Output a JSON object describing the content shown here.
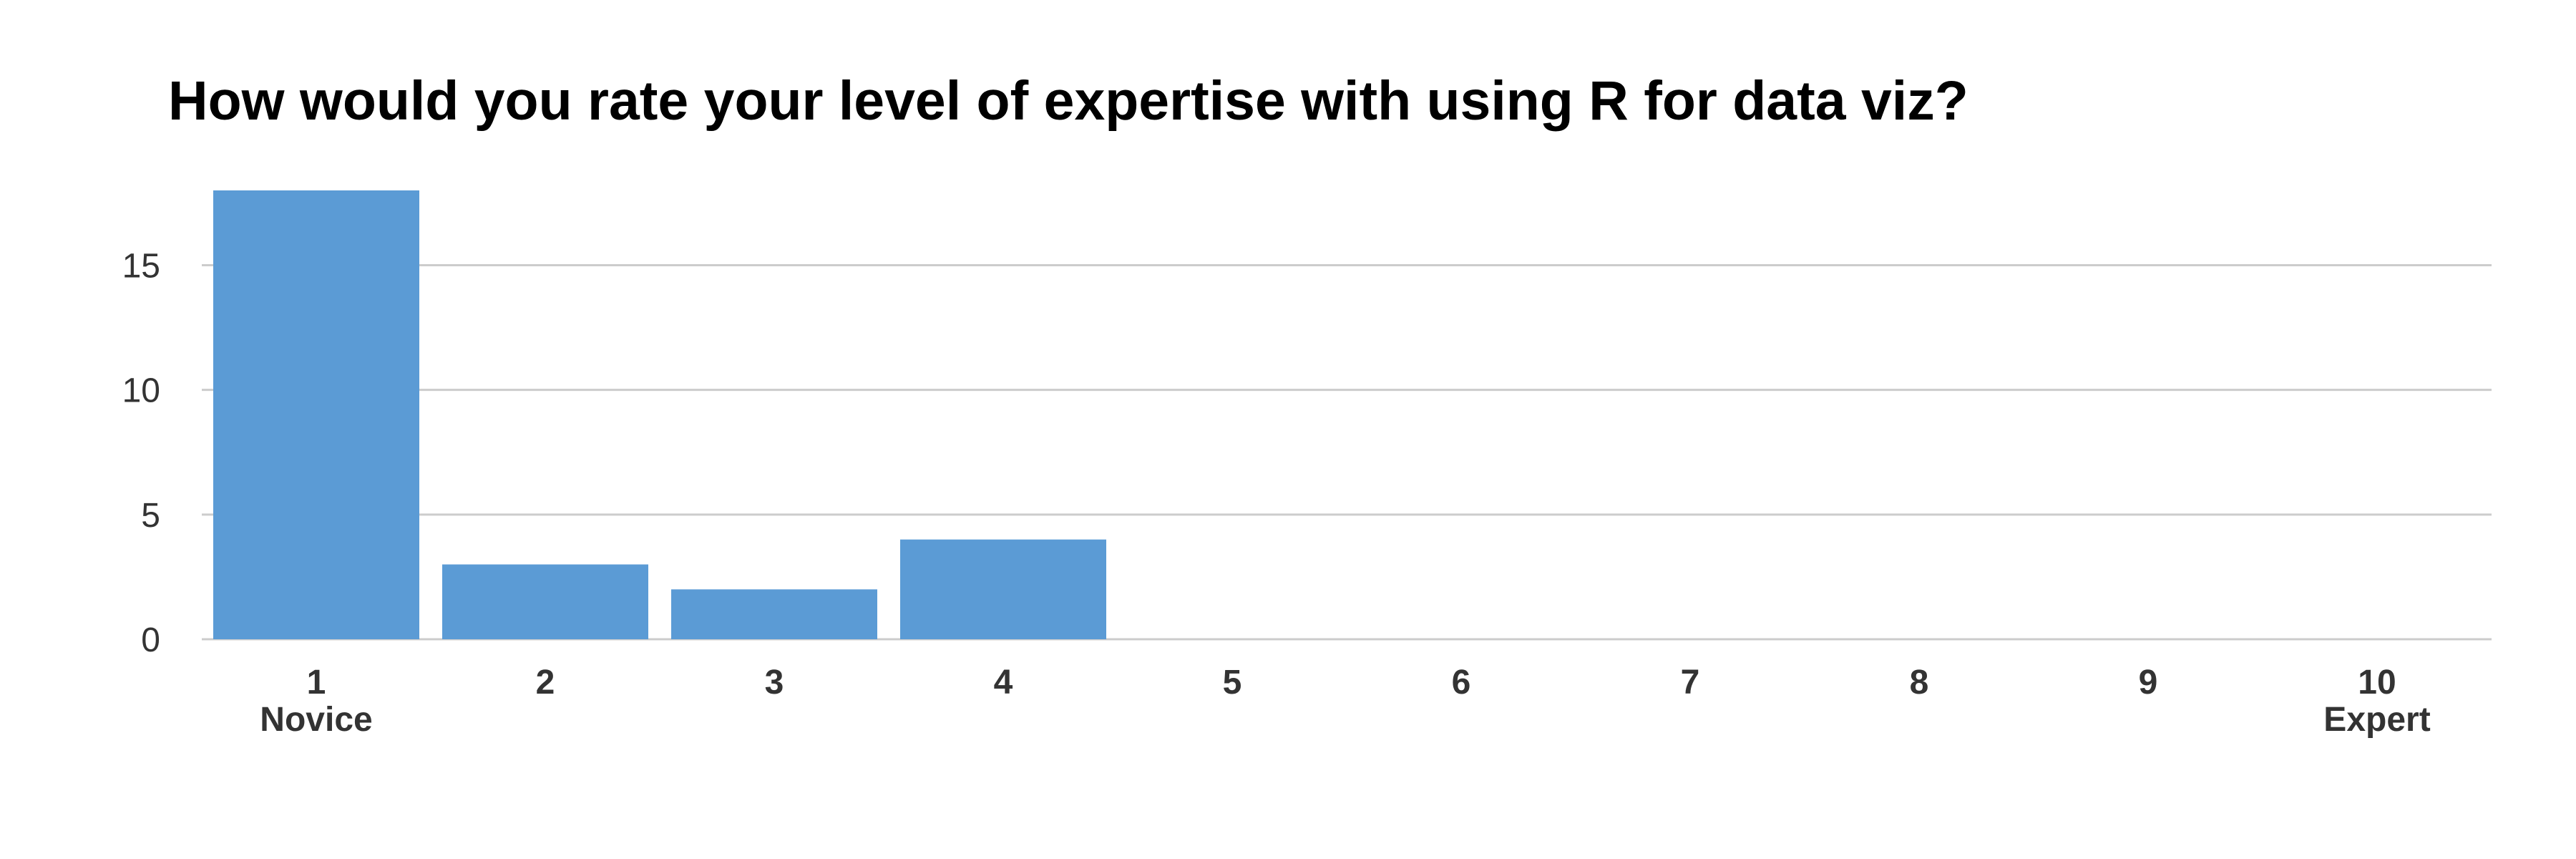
{
  "chart_data": {
    "type": "bar",
    "title": "How would you rate your level of expertise with using R for data viz?",
    "categories": [
      "1",
      "2",
      "3",
      "4",
      "5",
      "6",
      "7",
      "8",
      "9",
      "10"
    ],
    "category_sublabels": [
      "Novice",
      "",
      "",
      "",
      "",
      "",
      "",
      "",
      "",
      "Expert"
    ],
    "values": [
      18,
      3,
      2,
      4,
      0,
      0,
      0,
      0,
      0,
      0
    ],
    "xlabel": "",
    "ylabel": "",
    "ylim": [
      0,
      18
    ],
    "yticks": [
      0,
      5,
      10,
      15
    ],
    "grid": true,
    "bar_color": "#5b9bd5",
    "grid_color": "#cccccc"
  }
}
